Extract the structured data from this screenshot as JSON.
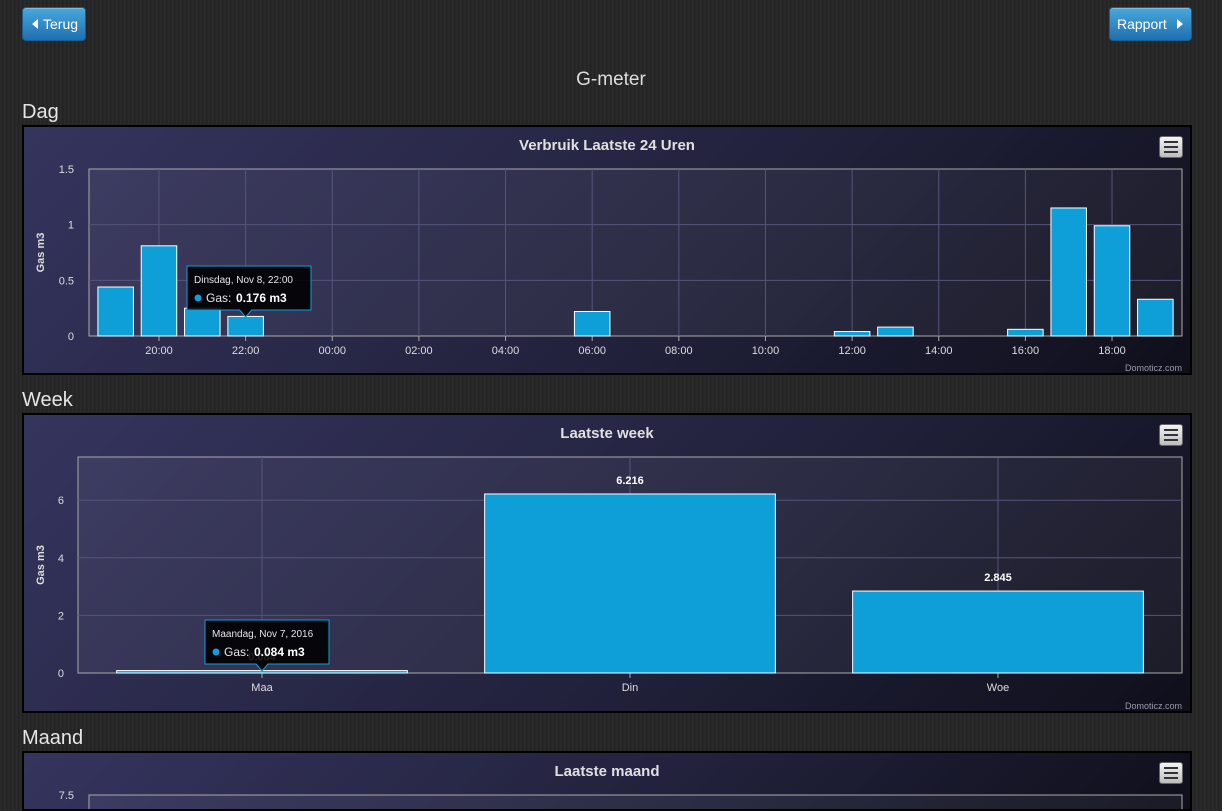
{
  "nav": {
    "back_label": "Terug",
    "report_label": "Rapport"
  },
  "page_title": "G-meter",
  "sections": {
    "day": "Dag",
    "week": "Week",
    "month": "Maand"
  },
  "colors": {
    "bar": "#0e9fd8",
    "accent_button": "#2f8bc7"
  },
  "credit": "Domoticz.com",
  "chart_data": [
    {
      "type": "bar",
      "title": "Verbruik Laatste 24 Uren",
      "ylabel": "Gas m3",
      "ylim": [
        0,
        1.5
      ],
      "yticks": [
        "0",
        "0.5",
        "1",
        "1.5"
      ],
      "xticks": [
        "20:00",
        "22:00",
        "00:00",
        "02:00",
        "04:00",
        "06:00",
        "08:00",
        "10:00",
        "12:00",
        "14:00",
        "16:00",
        "18:00"
      ],
      "categories": [
        "19:00",
        "20:00",
        "21:00",
        "22:00",
        "23:00",
        "00:00",
        "01:00",
        "02:00",
        "03:00",
        "04:00",
        "05:00",
        "06:00",
        "07:00",
        "08:00",
        "09:00",
        "10:00",
        "11:00",
        "12:00",
        "13:00",
        "14:00",
        "15:00",
        "16:00",
        "17:00",
        "18:00",
        "19:00"
      ],
      "values": [
        0.44,
        0.81,
        0.25,
        0.176,
        0,
        0,
        0,
        0,
        0,
        0,
        0,
        0.22,
        0,
        0,
        0,
        0,
        0,
        0.04,
        0.08,
        0,
        0,
        0.06,
        1.15,
        0.99,
        0.33
      ],
      "tooltip": {
        "title": "Dinsdag, Nov 8, 22:00",
        "series": "Gas:",
        "value": "0.176 m3"
      }
    },
    {
      "type": "bar",
      "title": "Laatste week",
      "ylabel": "Gas m3",
      "ylim": [
        0,
        7.5
      ],
      "yticks": [
        "0",
        "2",
        "4",
        "6"
      ],
      "categories": [
        "Maa",
        "Din",
        "Woe"
      ],
      "values": [
        0.084,
        6.216,
        2.845
      ],
      "data_labels": [
        "0.084",
        "6.216",
        "2.845"
      ],
      "tooltip": {
        "title": "Maandag, Nov 7, 2016",
        "series": "Gas:",
        "value": "0.084 m3"
      }
    },
    {
      "type": "bar",
      "title": "Laatste maand",
      "yticks": [
        "7.5"
      ]
    }
  ]
}
